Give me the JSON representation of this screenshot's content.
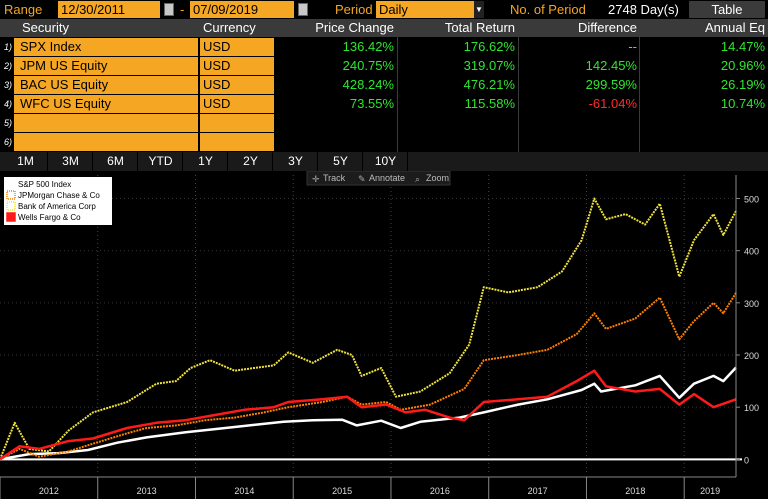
{
  "topbar": {
    "range_label": "Range",
    "start_date": "12/30/2011",
    "dash": "-",
    "end_date": "07/09/2019",
    "period_label": "Period",
    "period_value": "Daily",
    "num_period_label": "No. of Period",
    "num_period_value": "2748 Day(s)",
    "table_button": "Table"
  },
  "table": {
    "headers": {
      "security": "Security",
      "currency": "Currency",
      "price_change": "Price Change",
      "total_return": "Total Return",
      "difference": "Difference",
      "annual_eq": "Annual Eq"
    },
    "rows": [
      {
        "num": "1)",
        "security": "SPX Index",
        "currency": "USD",
        "price_change": "136.42%",
        "total_return": "176.62%",
        "difference": "--",
        "annual_eq": "14.47%"
      },
      {
        "num": "2)",
        "security": "JPM US Equity",
        "currency": "USD",
        "price_change": "240.75%",
        "total_return": "319.07%",
        "difference": "142.45%",
        "annual_eq": "20.96%"
      },
      {
        "num": "3)",
        "security": "BAC US Equity",
        "currency": "USD",
        "price_change": "428.24%",
        "total_return": "476.21%",
        "difference": "299.59%",
        "annual_eq": "26.19%"
      },
      {
        "num": "4)",
        "security": "WFC US Equity",
        "currency": "USD",
        "price_change": "73.55%",
        "total_return": "115.58%",
        "difference": "-61.04%",
        "annual_eq": "10.74%"
      },
      {
        "num": "5)",
        "security": "",
        "currency": "",
        "price_change": "",
        "total_return": "",
        "difference": "",
        "annual_eq": ""
      },
      {
        "num": "6)",
        "security": "",
        "currency": "",
        "price_change": "",
        "total_return": "",
        "difference": "",
        "annual_eq": ""
      }
    ]
  },
  "range_buttons": [
    "1M",
    "3M",
    "6M",
    "YTD",
    "1Y",
    "2Y",
    "3Y",
    "5Y",
    "10Y"
  ],
  "toolbar": {
    "track": "Track",
    "annotate": "Annotate",
    "zoom": "Zoom",
    "track_icon": "crosshair-icon",
    "annotate_icon": "pencil-icon",
    "zoom_icon": "magnifier-icon"
  },
  "colors": {
    "accent": "#f5a623",
    "positive": "#2ee62e",
    "negative": "#ff2b2b"
  },
  "chart_data": {
    "type": "line",
    "ylim": [
      -30,
      545
    ],
    "xlim": [
      2012.0,
      2019.53
    ],
    "yticks": [
      0,
      100,
      200,
      300,
      400,
      500
    ],
    "ytick_labels": [
      "0",
      "100",
      "200",
      "300",
      "400",
      "500"
    ],
    "xtick_labels": [
      "2012",
      "2013",
      "2014",
      "2015",
      "2016",
      "2017",
      "2018",
      "2019"
    ],
    "legend_position": "top-left",
    "series": [
      {
        "name": "S&P 500 Index",
        "color": "#ffffff",
        "dotted": false,
        "points": [
          [
            2012.0,
            0
          ],
          [
            2012.3,
            10
          ],
          [
            2012.6,
            12
          ],
          [
            2012.9,
            18
          ],
          [
            2013.2,
            32
          ],
          [
            2013.5,
            42
          ],
          [
            2013.9,
            52
          ],
          [
            2014.2,
            58
          ],
          [
            2014.6,
            66
          ],
          [
            2014.9,
            72
          ],
          [
            2015.2,
            75
          ],
          [
            2015.5,
            76
          ],
          [
            2015.65,
            65
          ],
          [
            2015.9,
            74
          ],
          [
            2016.1,
            60
          ],
          [
            2016.3,
            72
          ],
          [
            2016.7,
            80
          ],
          [
            2016.95,
            90
          ],
          [
            2017.3,
            105
          ],
          [
            2017.6,
            115
          ],
          [
            2017.95,
            133
          ],
          [
            2018.08,
            145
          ],
          [
            2018.15,
            130
          ],
          [
            2018.5,
            142
          ],
          [
            2018.75,
            160
          ],
          [
            2018.95,
            118
          ],
          [
            2019.1,
            145
          ],
          [
            2019.3,
            160
          ],
          [
            2019.4,
            150
          ],
          [
            2019.53,
            176
          ]
        ]
      },
      {
        "name": "JPMorgan Chase & Co",
        "color": "#ff7f00",
        "dotted": true,
        "points": [
          [
            2012.0,
            0
          ],
          [
            2012.2,
            20
          ],
          [
            2012.4,
            5
          ],
          [
            2012.7,
            15
          ],
          [
            2012.95,
            30
          ],
          [
            2013.3,
            50
          ],
          [
            2013.5,
            60
          ],
          [
            2013.8,
            65
          ],
          [
            2014.1,
            75
          ],
          [
            2014.4,
            80
          ],
          [
            2014.7,
            90
          ],
          [
            2014.95,
            100
          ],
          [
            2015.3,
            110
          ],
          [
            2015.55,
            120
          ],
          [
            2015.7,
            105
          ],
          [
            2015.95,
            110
          ],
          [
            2016.1,
            95
          ],
          [
            2016.4,
            105
          ],
          [
            2016.75,
            135
          ],
          [
            2016.95,
            190
          ],
          [
            2017.3,
            200
          ],
          [
            2017.6,
            210
          ],
          [
            2017.9,
            240
          ],
          [
            2018.08,
            280
          ],
          [
            2018.2,
            250
          ],
          [
            2018.5,
            270
          ],
          [
            2018.75,
            310
          ],
          [
            2018.95,
            230
          ],
          [
            2019.1,
            265
          ],
          [
            2019.3,
            300
          ],
          [
            2019.4,
            280
          ],
          [
            2019.53,
            319
          ]
        ]
      },
      {
        "name": "Bank of America Corp",
        "color": "#f0e23c",
        "dotted": true,
        "points": [
          [
            2012.0,
            0
          ],
          [
            2012.15,
            70
          ],
          [
            2012.3,
            20
          ],
          [
            2012.5,
            15
          ],
          [
            2012.7,
            55
          ],
          [
            2012.95,
            90
          ],
          [
            2013.3,
            110
          ],
          [
            2013.6,
            145
          ],
          [
            2013.8,
            150
          ],
          [
            2013.95,
            175
          ],
          [
            2014.15,
            190
          ],
          [
            2014.4,
            170
          ],
          [
            2014.6,
            175
          ],
          [
            2014.8,
            180
          ],
          [
            2014.95,
            205
          ],
          [
            2015.2,
            185
          ],
          [
            2015.45,
            210
          ],
          [
            2015.6,
            200
          ],
          [
            2015.7,
            160
          ],
          [
            2015.9,
            175
          ],
          [
            2016.05,
            120
          ],
          [
            2016.3,
            130
          ],
          [
            2016.6,
            165
          ],
          [
            2016.8,
            220
          ],
          [
            2016.95,
            330
          ],
          [
            2017.2,
            320
          ],
          [
            2017.5,
            330
          ],
          [
            2017.75,
            360
          ],
          [
            2017.95,
            420
          ],
          [
            2018.08,
            500
          ],
          [
            2018.2,
            460
          ],
          [
            2018.4,
            470
          ],
          [
            2018.6,
            450
          ],
          [
            2018.75,
            490
          ],
          [
            2018.95,
            350
          ],
          [
            2019.1,
            420
          ],
          [
            2019.3,
            470
          ],
          [
            2019.4,
            430
          ],
          [
            2019.53,
            476
          ]
        ]
      },
      {
        "name": "Wells Fargo & Co",
        "color": "#ff1a1a",
        "dotted": false,
        "points": [
          [
            2012.0,
            0
          ],
          [
            2012.2,
            25
          ],
          [
            2012.4,
            20
          ],
          [
            2012.7,
            35
          ],
          [
            2012.95,
            40
          ],
          [
            2013.3,
            60
          ],
          [
            2013.6,
            70
          ],
          [
            2013.9,
            75
          ],
          [
            2014.2,
            85
          ],
          [
            2014.5,
            95
          ],
          [
            2014.8,
            100
          ],
          [
            2014.95,
            110
          ],
          [
            2015.3,
            115
          ],
          [
            2015.55,
            120
          ],
          [
            2015.7,
            100
          ],
          [
            2015.95,
            105
          ],
          [
            2016.15,
            90
          ],
          [
            2016.35,
            95
          ],
          [
            2016.6,
            80
          ],
          [
            2016.75,
            75
          ],
          [
            2016.95,
            110
          ],
          [
            2017.3,
            115
          ],
          [
            2017.6,
            120
          ],
          [
            2017.9,
            150
          ],
          [
            2018.08,
            170
          ],
          [
            2018.2,
            140
          ],
          [
            2018.5,
            130
          ],
          [
            2018.75,
            135
          ],
          [
            2018.95,
            105
          ],
          [
            2019.1,
            125
          ],
          [
            2019.3,
            100
          ],
          [
            2019.53,
            115
          ]
        ]
      }
    ]
  }
}
